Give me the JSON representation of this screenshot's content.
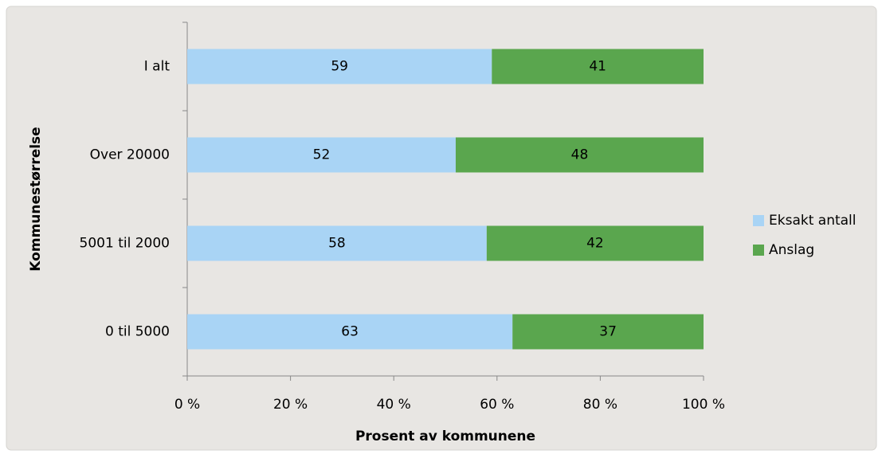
{
  "chart_data": {
    "type": "stacked_barh",
    "categories": [
      "I alt",
      "Over 20000",
      "5001 til 2000",
      "0 til 5000"
    ],
    "series": [
      {
        "name": "Eksakt antall",
        "color": "#a9d4f5",
        "values": [
          59,
          52,
          58,
          63
        ]
      },
      {
        "name": "Anslag",
        "color": "#5aa64e",
        "values": [
          41,
          48,
          42,
          37
        ]
      }
    ],
    "xlim": [
      0,
      100
    ],
    "xticks": [
      {
        "value": 0,
        "label": "0 %"
      },
      {
        "value": 20,
        "label": "20 %"
      },
      {
        "value": 40,
        "label": "40 %"
      },
      {
        "value": 60,
        "label": "60 %"
      },
      {
        "value": 80,
        "label": "80 %"
      },
      {
        "value": 100,
        "label": "100 %"
      }
    ],
    "xlabel": "Prosent av kommunene",
    "ylabel": "Kommunestørrelse",
    "legend": "right"
  }
}
